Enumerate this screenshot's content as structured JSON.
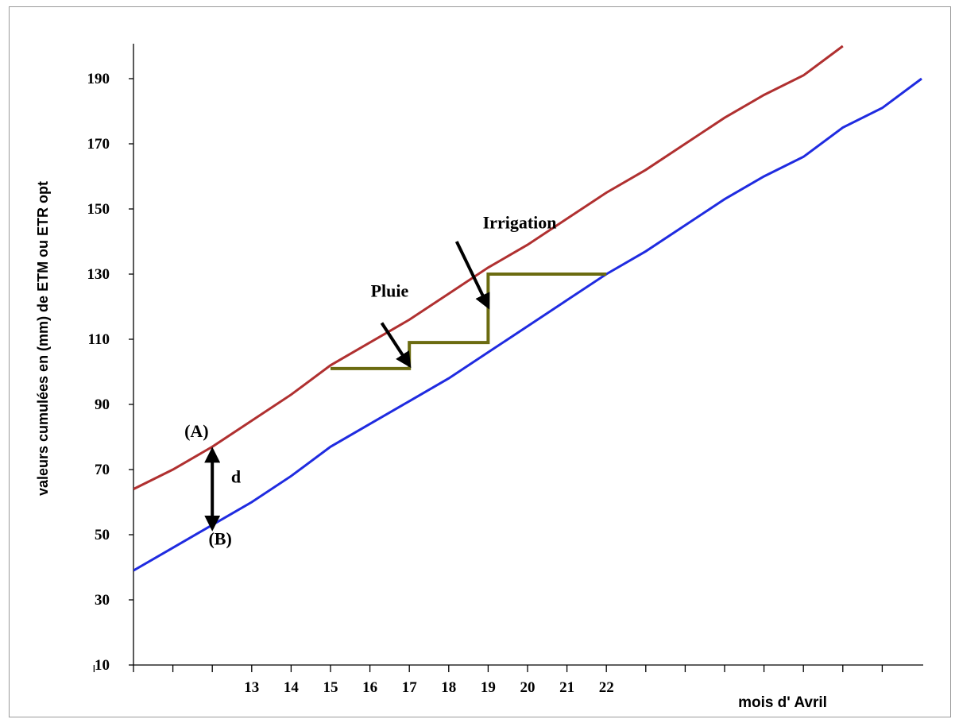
{
  "chart_data": {
    "type": "line",
    "title": "",
    "ylabel": "valeurs cumulées en (mm) de ETM ou ETR opt",
    "xlabel": "mois d' Avril",
    "ylim": [
      10,
      200
    ],
    "yticks": [
      10,
      30,
      50,
      70,
      90,
      110,
      130,
      150,
      170,
      190
    ],
    "x_positions": [
      10,
      11,
      12,
      13,
      14,
      15,
      16,
      17,
      18,
      19,
      20,
      21,
      22,
      23,
      24,
      25,
      26,
      27,
      28,
      29,
      30
    ],
    "xtick_labels": [
      {
        "x": 13,
        "label": "13"
      },
      {
        "x": 14,
        "label": "14"
      },
      {
        "x": 15,
        "label": "15"
      },
      {
        "x": 16,
        "label": "16"
      },
      {
        "x": 17,
        "label": "17"
      },
      {
        "x": 18,
        "label": "18"
      },
      {
        "x": 19,
        "label": "19"
      },
      {
        "x": 20,
        "label": "20"
      },
      {
        "x": 21,
        "label": "21"
      },
      {
        "x": 22,
        "label": "22"
      }
    ],
    "series": [
      {
        "name": "(A)",
        "color": "#b03030",
        "points": [
          [
            11,
            64
          ],
          [
            12,
            70
          ],
          [
            13,
            77
          ],
          [
            14,
            85
          ],
          [
            15,
            93
          ],
          [
            16,
            102
          ],
          [
            17,
            109
          ],
          [
            18,
            116
          ],
          [
            19,
            124
          ],
          [
            20,
            132
          ],
          [
            21,
            139
          ],
          [
            22,
            147
          ],
          [
            23,
            155
          ],
          [
            24,
            162
          ],
          [
            25,
            170
          ],
          [
            26,
            178
          ],
          [
            27,
            185
          ],
          [
            28,
            191
          ],
          [
            29,
            200
          ]
        ]
      },
      {
        "name": "(B)",
        "color": "#1f2be0",
        "points": [
          [
            11,
            39
          ],
          [
            12,
            46
          ],
          [
            13,
            53
          ],
          [
            14,
            60
          ],
          [
            15,
            68
          ],
          [
            16,
            77
          ],
          [
            17,
            84
          ],
          [
            18,
            91
          ],
          [
            19,
            98
          ],
          [
            20,
            106
          ],
          [
            21,
            114
          ],
          [
            22,
            122
          ],
          [
            23,
            130
          ],
          [
            24,
            137
          ],
          [
            25,
            145
          ],
          [
            26,
            153
          ],
          [
            27,
            160
          ],
          [
            28,
            166
          ],
          [
            29,
            175
          ],
          [
            30,
            181
          ],
          [
            31,
            190
          ]
        ]
      },
      {
        "name": "Pluie / Irrigation",
        "color": "#6b6b10",
        "points": [
          [
            16,
            101
          ],
          [
            18,
            101
          ],
          [
            18,
            109
          ],
          [
            20,
            109
          ],
          [
            20,
            130
          ],
          [
            23,
            130
          ]
        ]
      }
    ],
    "annotations": [
      {
        "text": "(A)",
        "x": 12.6,
        "y": 80
      },
      {
        "text": "(B)",
        "x": 13.2,
        "y": 47
      },
      {
        "text": "d",
        "x": 13.6,
        "y": 66
      },
      {
        "text": "Pluie",
        "x": 17.5,
        "y": 123
      },
      {
        "text": "Irrigation",
        "x": 20.8,
        "y": 144
      }
    ],
    "arrows": [
      {
        "label": "d",
        "from": [
          13,
          76
        ],
        "to": [
          13,
          52
        ],
        "double": true
      },
      {
        "label": "Pluie",
        "from": [
          17.3,
          115
        ],
        "to": [
          18,
          102
        ]
      },
      {
        "label": "Irrigation",
        "from": [
          19.2,
          140
        ],
        "to": [
          20,
          120
        ]
      }
    ],
    "grid": false,
    "legend": "none"
  }
}
